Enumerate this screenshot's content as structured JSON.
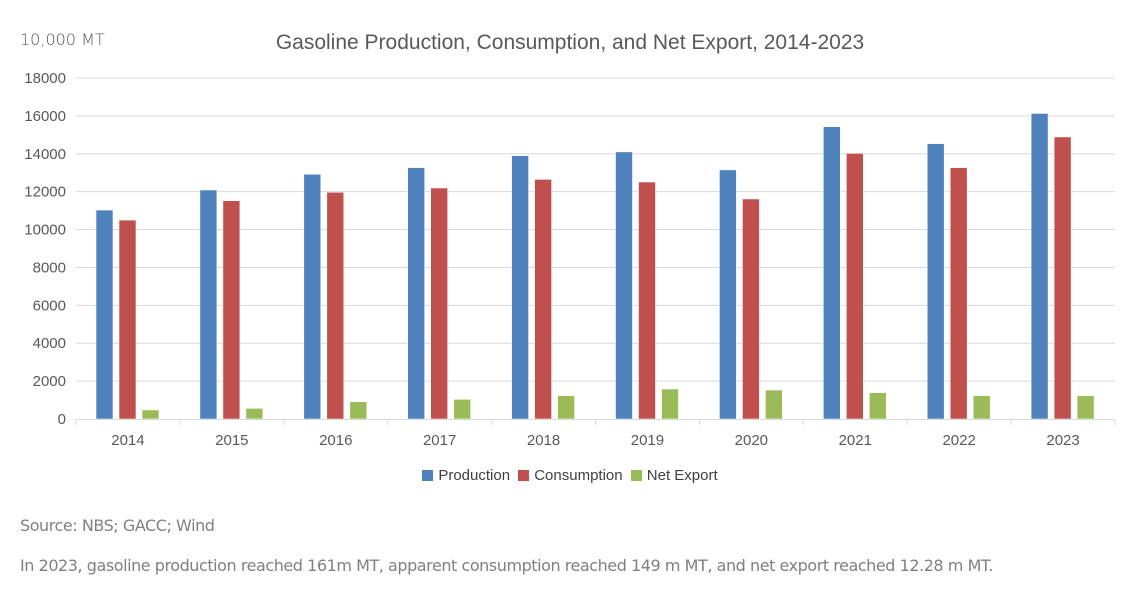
{
  "chart_data": {
    "type": "bar",
    "title": "Gasoline Production, Consumption, and Net Export, 2014-2023",
    "unit_label": "10,000 MT",
    "xlabel": "",
    "ylabel": "10,000 MT",
    "ylim": [
      0,
      18000
    ],
    "yticks": [
      0,
      2000,
      4000,
      6000,
      8000,
      10000,
      12000,
      14000,
      16000,
      18000
    ],
    "grid": true,
    "legend_position": "bottom",
    "categories": [
      "2014",
      "2015",
      "2016",
      "2017",
      "2018",
      "2019",
      "2020",
      "2021",
      "2022",
      "2023"
    ],
    "series": [
      {
        "name": "Production",
        "color": "#4f81bd",
        "values": [
          11030,
          12090,
          12920,
          13270,
          13900,
          14100,
          13150,
          15430,
          14535,
          16130
        ]
      },
      {
        "name": "Consumption",
        "color": "#c0504d",
        "values": [
          10500,
          11525,
          11970,
          12195,
          12650,
          12510,
          11615,
          14025,
          13270,
          14890
        ]
      },
      {
        "name": "Net Export",
        "color": "#9bbb59",
        "values": [
          480,
          565,
          915,
          1040,
          1230,
          1585,
          1530,
          1390,
          1230,
          1228
        ]
      }
    ]
  },
  "footer": {
    "source": "Source: NBS; GACC; Wind",
    "note": "In 2023, gasoline production reached 161m MT, apparent consumption reached 149 m MT, and net export reached 12.28 m MT."
  }
}
